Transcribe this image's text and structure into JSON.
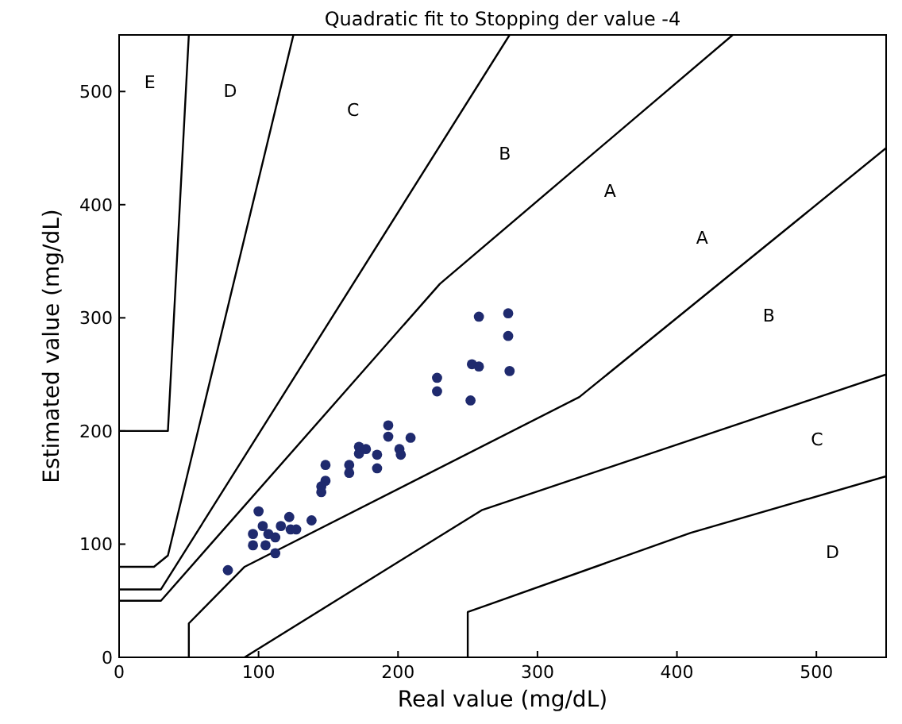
{
  "chart_data": {
    "type": "scatter",
    "title": "Quadratic fit to Stopping der value -4",
    "xlabel": "Real value (mg/dL)",
    "ylabel": "Estimated value (mg/dL)",
    "xlim": [
      0,
      550
    ],
    "ylim": [
      0,
      550
    ],
    "xticks": [
      0,
      100,
      200,
      300,
      400,
      500
    ],
    "yticks": [
      0,
      100,
      200,
      300,
      400,
      500
    ],
    "grid": false,
    "series": [
      {
        "marker": "circle",
        "color": "#1f2a6e",
        "x": [
          78,
          100,
          96,
          96,
          103,
          105,
          107,
          112,
          112,
          116,
          122,
          123,
          127,
          138,
          145,
          148,
          148,
          145,
          165,
          165,
          172,
          172,
          177,
          185,
          185,
          193,
          193,
          201,
          202,
          209,
          228,
          228,
          252,
          253,
          258,
          258,
          279,
          279,
          280
        ],
        "values": [
          77,
          129,
          109,
          99,
          116,
          99,
          109,
          92,
          106,
          116,
          124,
          113,
          113,
          121,
          146,
          170,
          156,
          151,
          170,
          163,
          186,
          180,
          184,
          179,
          167,
          205,
          195,
          184,
          179,
          194,
          247,
          235,
          227,
          259,
          257,
          301,
          304,
          284,
          253
        ]
      },
      {
        "type": "line",
        "color": "#000000",
        "x": [
          0,
          30,
          230,
          440
        ],
        "values": [
          50,
          50,
          330,
          550
        ]
      },
      {
        "type": "line",
        "color": "#000000",
        "x": [
          50,
          50,
          90,
          330,
          550
        ],
        "values": [
          0,
          30,
          80,
          230,
          450
        ]
      },
      {
        "type": "line",
        "color": "#000000",
        "x": [
          0,
          30,
          280
        ],
        "values": [
          60,
          60,
          550
        ]
      },
      {
        "type": "line",
        "color": "#000000",
        "x": [
          90,
          260,
          550
        ],
        "values": [
          0,
          130,
          250
        ]
      },
      {
        "type": "line",
        "color": "#000000",
        "x": [
          0,
          25,
          35,
          125
        ],
        "values": [
          80,
          80,
          90,
          550
        ]
      },
      {
        "type": "line",
        "color": "#000000",
        "x": [
          250,
          250,
          410,
          550
        ],
        "values": [
          0,
          40,
          110,
          160
        ]
      },
      {
        "type": "line",
        "color": "#000000",
        "x": [
          0,
          35,
          50
        ],
        "values": [
          200,
          200,
          550
        ]
      }
    ],
    "annotations": [
      "E",
      "D",
      "C",
      "B",
      "A",
      "A",
      "B",
      "C",
      "D"
    ]
  }
}
